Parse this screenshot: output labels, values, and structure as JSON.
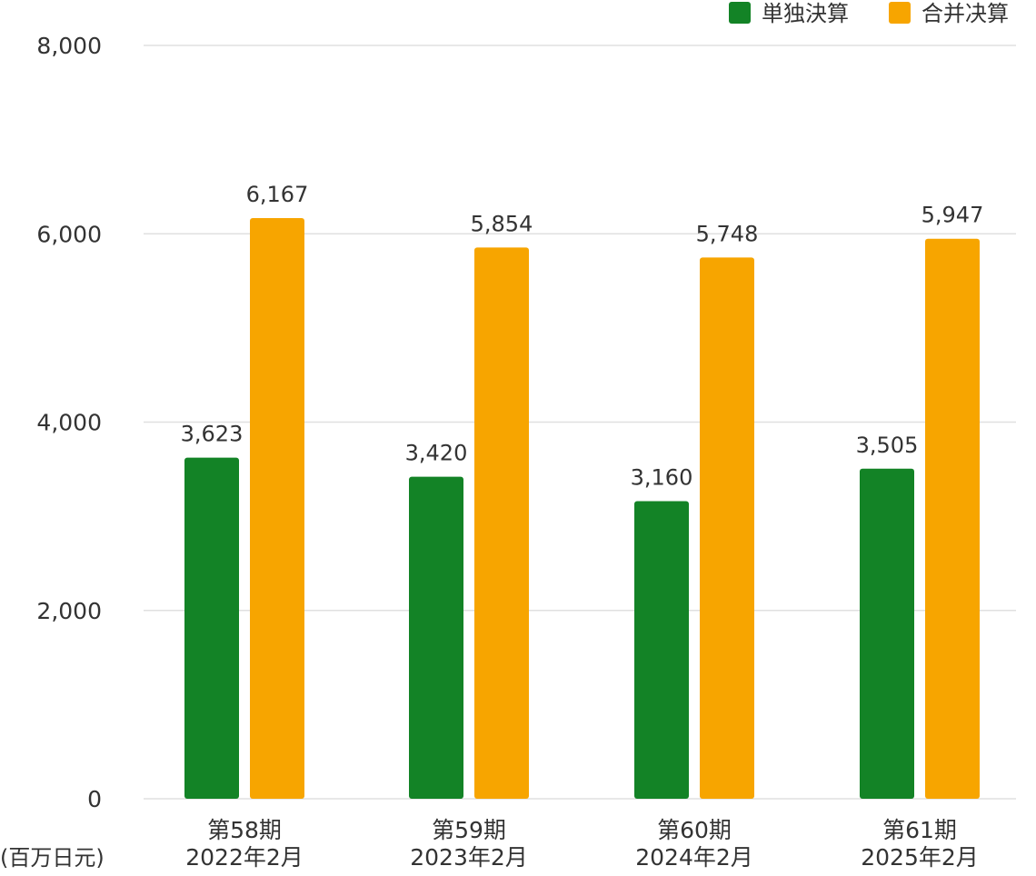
{
  "chart_data": {
    "type": "bar",
    "title": "",
    "xlabel": "",
    "ylabel": "",
    "unit_label": "(百万日元)",
    "categories": [
      [
        "第58期",
        "2022年2月"
      ],
      [
        "第59期",
        "2023年2月"
      ],
      [
        "第60期",
        "2024年2月"
      ],
      [
        "第61期",
        "2025年2月"
      ]
    ],
    "series": [
      {
        "name": "単独決算",
        "color": "#138326",
        "values": [
          3623,
          3420,
          3160,
          3505
        ]
      },
      {
        "name": "合并决算",
        "color": "#F7A500",
        "values": [
          6167,
          5854,
          5748,
          5947
        ]
      }
    ],
    "ylim": [
      0,
      8000
    ],
    "yticks": [
      0,
      2000,
      4000,
      6000,
      8000
    ],
    "grid": true,
    "legend_position": "top-right",
    "data_labels": true,
    "gridline_color": "#e0e0e0",
    "text_color": "#333333"
  }
}
